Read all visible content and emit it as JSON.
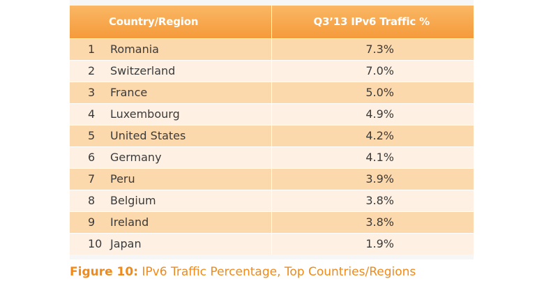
{
  "chart_data": {
    "type": "table",
    "columns": [
      "Country/Region",
      "Q3’13 IPv6 Traffic %"
    ],
    "rows": [
      {
        "rank": "1",
        "country": "Romania",
        "value": "7.3%"
      },
      {
        "rank": "2",
        "country": "Switzerland",
        "value": "7.0%"
      },
      {
        "rank": "3",
        "country": "France",
        "value": "5.0%"
      },
      {
        "rank": "4",
        "country": "Luxembourg",
        "value": "4.9%"
      },
      {
        "rank": "5",
        "country": "United States",
        "value": "4.2%"
      },
      {
        "rank": "6",
        "country": "Germany",
        "value": "4.1%"
      },
      {
        "rank": "7",
        "country": "Peru",
        "value": "3.9%"
      },
      {
        "rank": "8",
        "country": "Belgium",
        "value": "3.8%"
      },
      {
        "rank": "9",
        "country": "Ireland",
        "value": "3.8%"
      },
      {
        "rank": "10",
        "country": "Japan",
        "value": "1.9%"
      }
    ],
    "caption_label": "Figure 10:",
    "caption_text": "IPv6 Traffic Percentage, Top Countries/Regions"
  },
  "colors": {
    "header": "#f59a3b",
    "row_dark": "#fcd8ad",
    "row_light": "#fef1e3",
    "caption": "#f08a1a"
  }
}
